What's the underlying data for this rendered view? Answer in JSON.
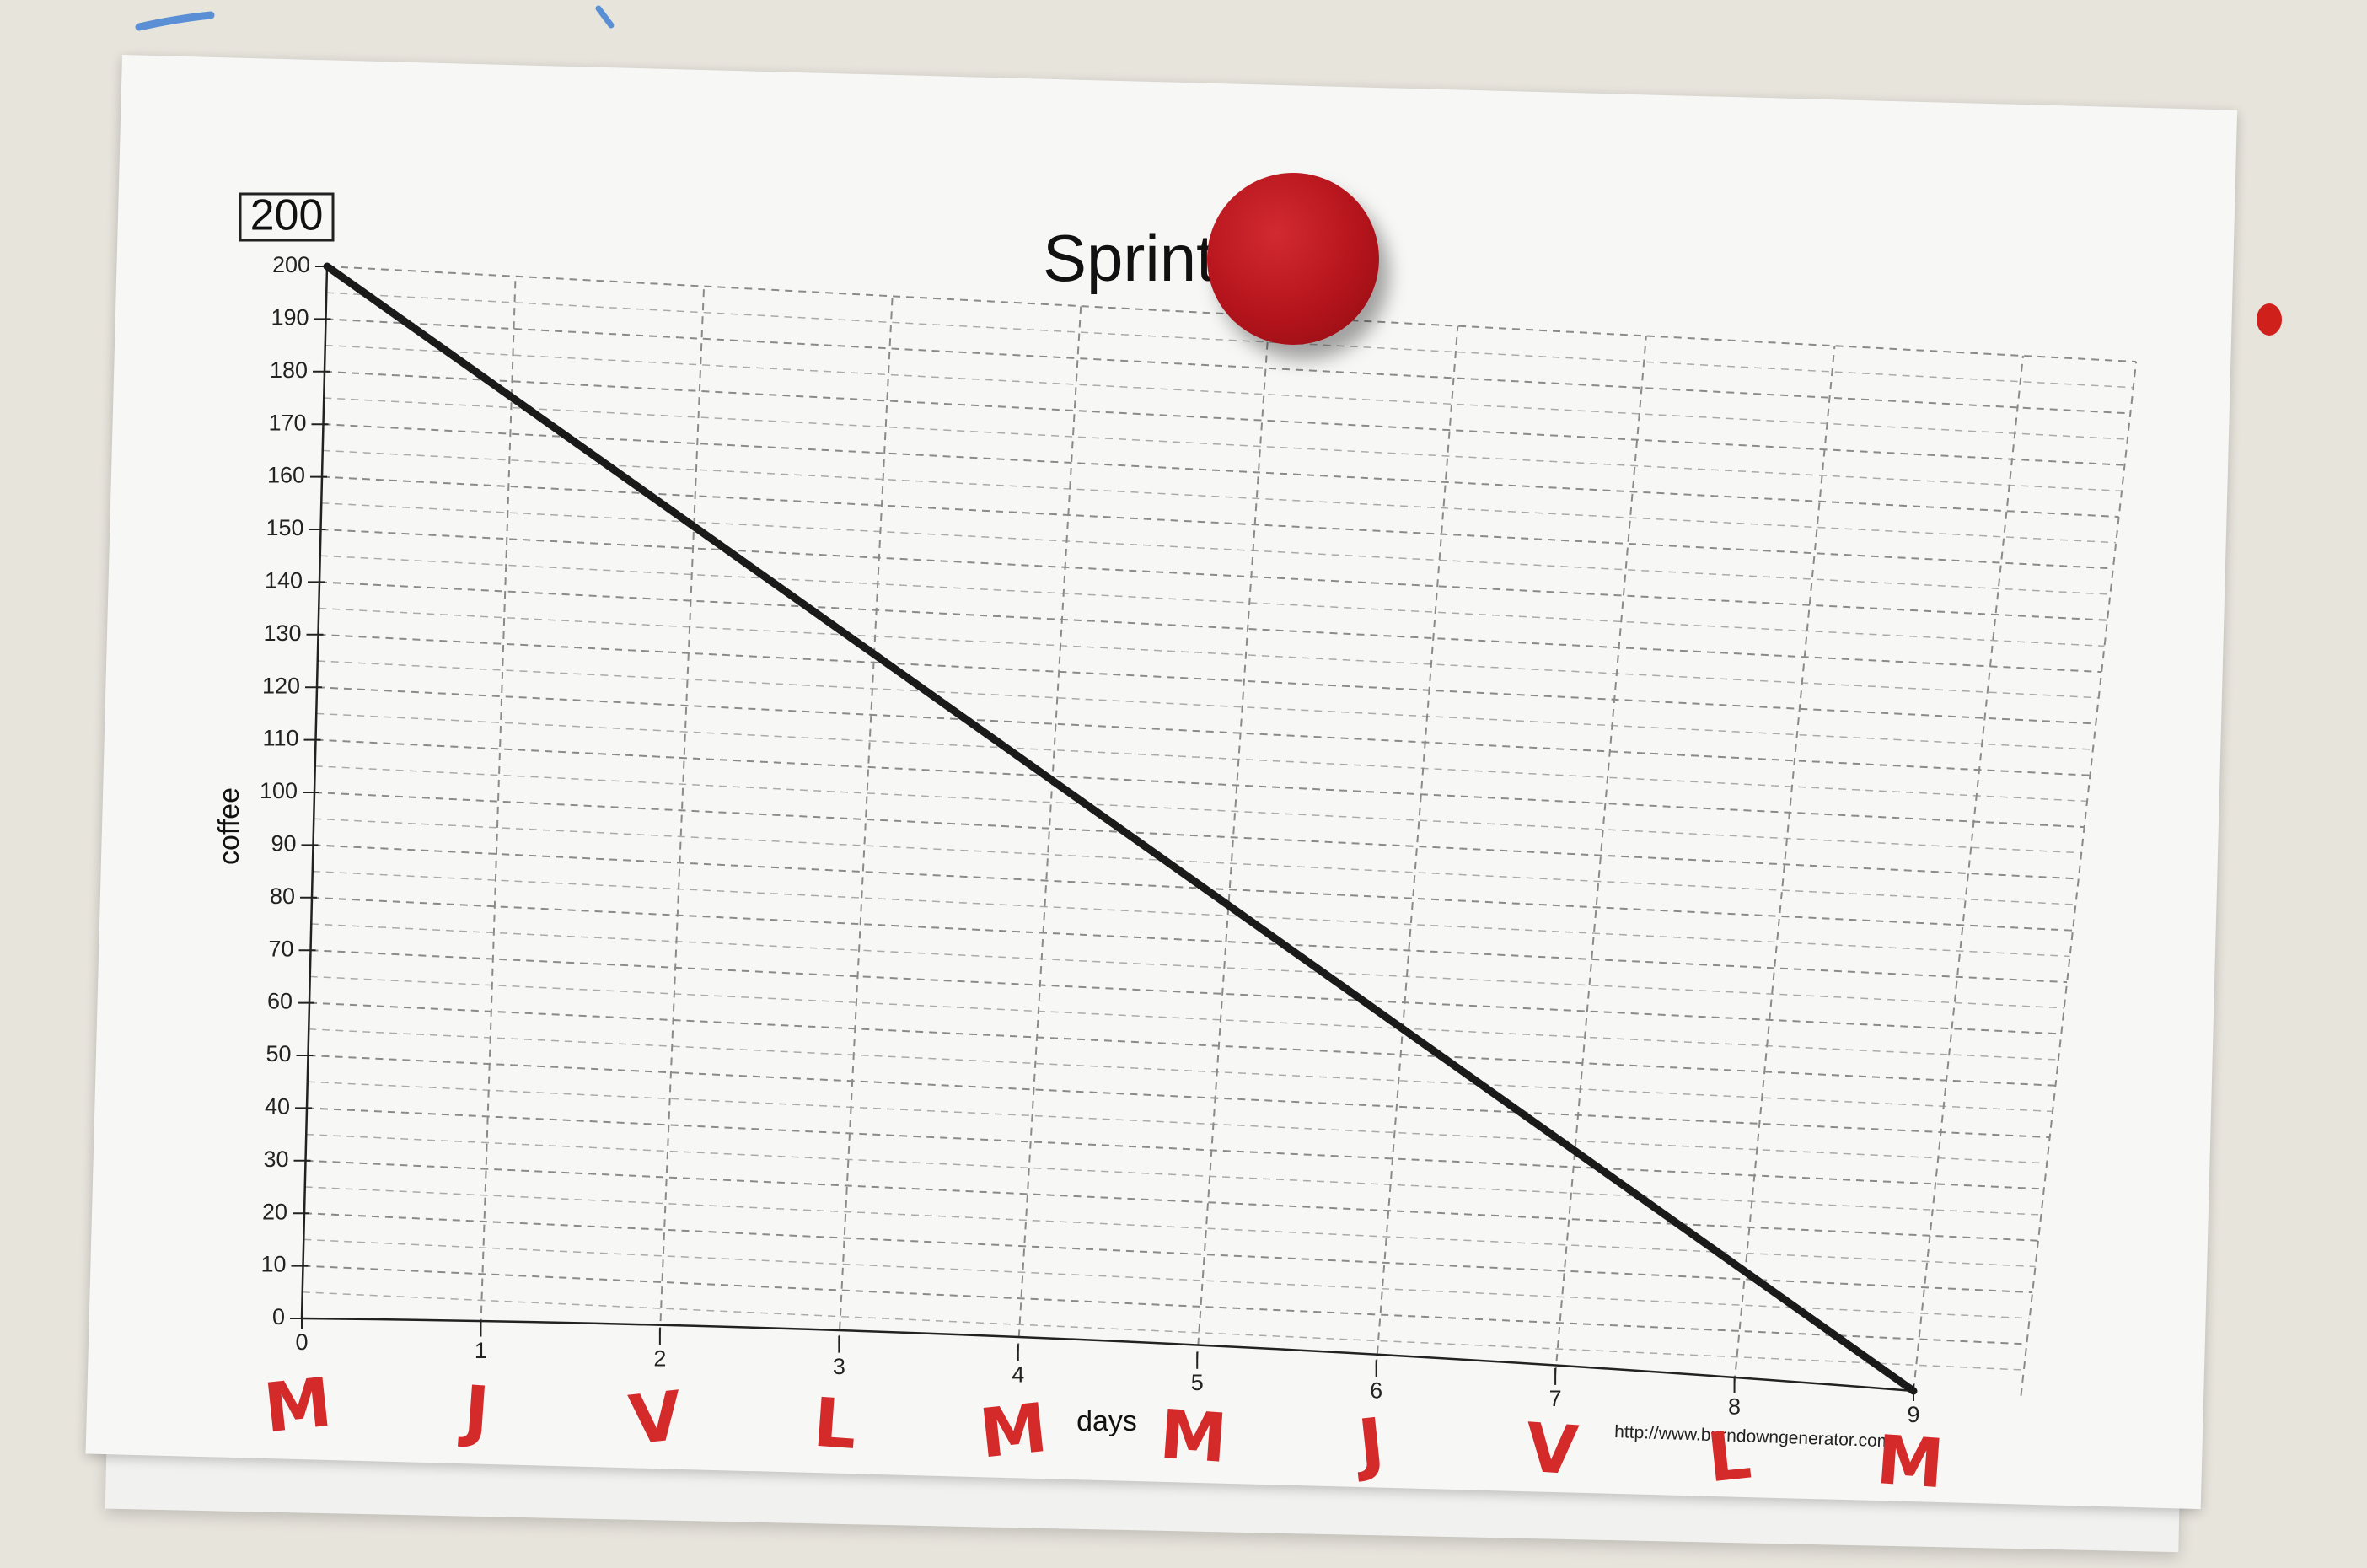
{
  "chart_data": {
    "type": "line",
    "title": "Sprint",
    "total_box": "200",
    "xlabel": "days",
    "ylabel": "coffee",
    "x_ticks": [
      "0",
      "1",
      "2",
      "3",
      "4",
      "5",
      "6",
      "7",
      "8",
      "9"
    ],
    "y_ticks": [
      "0",
      "10",
      "20",
      "30",
      "40",
      "50",
      "60",
      "70",
      "80",
      "90",
      "100",
      "110",
      "120",
      "130",
      "140",
      "150",
      "160",
      "170",
      "180",
      "190",
      "200"
    ],
    "xlim": [
      0,
      9
    ],
    "ylim": [
      0,
      200
    ],
    "grid": true,
    "grid_style": "dashed",
    "series": [
      {
        "x": [
          0,
          9
        ],
        "y": [
          200,
          0
        ]
      }
    ],
    "footer_url": "http://www.burndowngenerator.com",
    "colors": {
      "line": "#1a1a1a",
      "grid": "#8a8a8a",
      "annotation": "#d42a2a"
    }
  },
  "annotations": {
    "day_letters": [
      "M",
      "J",
      "V",
      "L",
      "M",
      "M",
      "J",
      "V",
      "L",
      "M"
    ]
  },
  "magnet_color": "#b5141c"
}
